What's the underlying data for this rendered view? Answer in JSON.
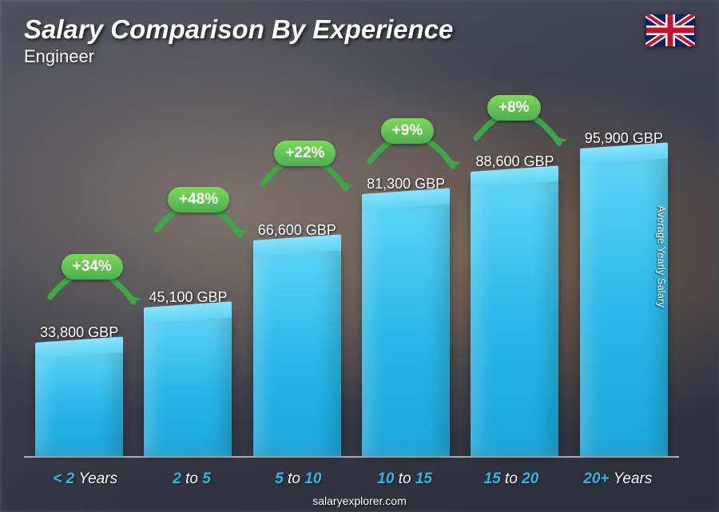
{
  "header": {
    "title": "Salary Comparison By Experience",
    "subtitle": "Engineer",
    "flag_country": "United Kingdom"
  },
  "y_axis_label": "Average Yearly Salary",
  "footer": "salaryexplorer.com",
  "chart": {
    "type": "bar",
    "currency": "GBP",
    "max_value": 100000,
    "bar_color_top": "#5dd5f5",
    "bar_color_bottom": "#1aa5d8",
    "pct_badge_color": "#4caf50",
    "arrow_color": "#3da843",
    "x_label_color": "#2bb8e8",
    "value_label_color": "#ffffff",
    "value_fontsize": 18,
    "x_label_fontsize": 19,
    "title_fontsize": 33,
    "subtitle_fontsize": 22,
    "bars": [
      {
        "category_html": "< 2 <span class='thin'>Years</span>",
        "value": 33800,
        "value_label": "33,800 GBP",
        "pct_increase": null
      },
      {
        "category_html": "2 <span class='thin'>to</span> 5",
        "value": 45100,
        "value_label": "45,100 GBP",
        "pct_increase": "+34%"
      },
      {
        "category_html": "5 <span class='thin'>to</span> 10",
        "value": 66600,
        "value_label": "66,600 GBP",
        "pct_increase": "+48%"
      },
      {
        "category_html": "10 <span class='thin'>to</span> 15",
        "value": 81300,
        "value_label": "81,300 GBP",
        "pct_increase": "+22%"
      },
      {
        "category_html": "15 <span class='thin'>to</span> 20",
        "value": 88600,
        "value_label": "88,600 GBP",
        "pct_increase": "+9%"
      },
      {
        "category_html": "20+ <span class='thin'>Years</span>",
        "value": 95900,
        "value_label": "95,900 GBP",
        "pct_increase": "+8%"
      }
    ]
  }
}
